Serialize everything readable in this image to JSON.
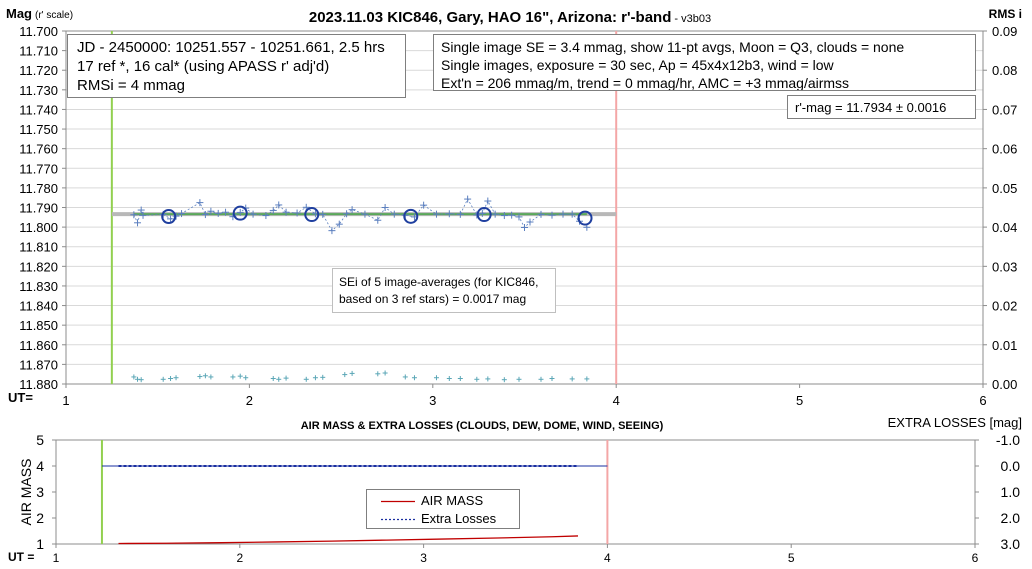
{
  "title": {
    "main": "2023.11.03 KIC846, Gary, HAO 16\", Arizona: r'-band",
    "version": " - v3b03"
  },
  "annotations": {
    "jd_box": [
      "JD - 2450000: 10251.557 - 10251.661, 2.5 hrs",
      "17 ref *, 16 cal* (using APASS r' adj'd)",
      "RMSi = 4 mmag"
    ],
    "se_box": [
      "Single image SE = 3.4 mmag, show  11-pt avgs, Moon = Q3, clouds = none",
      "Single images, exposure = 30 sec, Ap = 45x4x12b3, wind = low",
      "Ext'n = 206 mmag/m, trend = 0  mmag/hr, AMC = +3 mmag/airmss"
    ],
    "rmag_box": "r'-mag = 11.7934 ± 0.0016",
    "sei_box": [
      "SEi of 5 image-averages (for KIC846,",
      "based on 3 ref stars) = 0.0017 mag"
    ]
  },
  "colors": {
    "green_marker": "#92d050",
    "red_marker": "#f4a6a6",
    "points": "#5b7fbf",
    "circles": "#1f3f9f",
    "fit_green": "#5aa85a",
    "fit_gray": "#b8b8b8",
    "rms": "#5aa6b6",
    "airmass": "#c00000",
    "extra": "#1a2fa0",
    "grid": "#d9d9d9"
  },
  "chart_data": [
    {
      "type": "scatter",
      "name": "top",
      "ylabel": "Mag",
      "ylabel_unit": "(r' scale)",
      "y2label": "RMS i",
      "xlabel": "UT=",
      "xlim": [
        1,
        6
      ],
      "ylim": [
        11.7,
        11.88
      ],
      "y_reversed": true,
      "y2lim": [
        0,
        0.09
      ],
      "x_ticks": [
        1,
        2,
        3,
        4,
        5,
        6
      ],
      "y_ticks": [
        11.7,
        11.71,
        11.72,
        11.73,
        11.74,
        11.75,
        11.76,
        11.77,
        11.78,
        11.79,
        11.8,
        11.81,
        11.82,
        11.83,
        11.84,
        11.85,
        11.86,
        11.87,
        11.88
      ],
      "y2_ticks": [
        0,
        0.01,
        0.02,
        0.03,
        0.04,
        0.05,
        0.06,
        0.07,
        0.08,
        0.09
      ],
      "start_ut": 1.25,
      "end_ut": 4.0,
      "fit_mag": 11.7934,
      "fit_range": [
        1.37,
        3.84
      ],
      "avg_points": [
        [
          1.56,
          11.7946
        ],
        [
          1.95,
          11.7929
        ],
        [
          2.34,
          11.7936
        ],
        [
          2.88,
          11.7945
        ],
        [
          3.28,
          11.7936
        ],
        [
          3.83,
          11.7954
        ]
      ],
      "points": [
        [
          1.37,
          11.7937
        ],
        [
          1.39,
          11.7978
        ],
        [
          1.41,
          11.7913
        ],
        [
          1.42,
          11.794
        ],
        [
          1.53,
          11.7935
        ],
        [
          1.57,
          11.7958
        ],
        [
          1.6,
          11.7944
        ],
        [
          1.63,
          11.7931
        ],
        [
          1.73,
          11.7875
        ],
        [
          1.76,
          11.7936
        ],
        [
          1.79,
          11.7919
        ],
        [
          1.83,
          11.793
        ],
        [
          1.87,
          11.7924
        ],
        [
          1.91,
          11.7947
        ],
        [
          1.95,
          11.7925
        ],
        [
          1.98,
          11.7903
        ],
        [
          2.02,
          11.7934
        ],
        [
          2.09,
          11.7941
        ],
        [
          2.13,
          11.7915
        ],
        [
          2.16,
          11.7887
        ],
        [
          2.2,
          11.7924
        ],
        [
          2.26,
          11.7928
        ],
        [
          2.31,
          11.7899
        ],
        [
          2.36,
          11.7932
        ],
        [
          2.4,
          11.7935
        ],
        [
          2.45,
          11.8018
        ],
        [
          2.49,
          11.7985
        ],
        [
          2.53,
          11.7932
        ],
        [
          2.56,
          11.7911
        ],
        [
          2.63,
          11.7934
        ],
        [
          2.7,
          11.7965
        ],
        [
          2.74,
          11.79
        ],
        [
          2.79,
          11.7934
        ],
        [
          2.85,
          11.7939
        ],
        [
          2.9,
          11.7948
        ],
        [
          2.95,
          11.7888
        ],
        [
          3.02,
          11.7934
        ],
        [
          3.09,
          11.7932
        ],
        [
          3.15,
          11.7935
        ],
        [
          3.19,
          11.7857
        ],
        [
          3.24,
          11.7938
        ],
        [
          3.27,
          11.793
        ],
        [
          3.3,
          11.7867
        ],
        [
          3.34,
          11.7934
        ],
        [
          3.39,
          11.7941
        ],
        [
          3.43,
          11.7939
        ],
        [
          3.47,
          11.7948
        ],
        [
          3.5,
          11.8002
        ],
        [
          3.53,
          11.7974
        ],
        [
          3.59,
          11.7935
        ],
        [
          3.65,
          11.7939
        ],
        [
          3.71,
          11.7934
        ],
        [
          3.76,
          11.7934
        ],
        [
          3.8,
          11.797
        ],
        [
          3.84,
          11.8001
        ]
      ],
      "rms_points": [
        [
          1.37,
          0.0018
        ],
        [
          1.39,
          0.0012
        ],
        [
          1.41,
          0.0011
        ],
        [
          1.53,
          0.0012
        ],
        [
          1.57,
          0.0014
        ],
        [
          1.6,
          0.0016
        ],
        [
          1.73,
          0.0019
        ],
        [
          1.76,
          0.0021
        ],
        [
          1.79,
          0.0018
        ],
        [
          1.91,
          0.0018
        ],
        [
          1.95,
          0.002
        ],
        [
          1.98,
          0.0016
        ],
        [
          2.13,
          0.0014
        ],
        [
          2.16,
          0.0012
        ],
        [
          2.2,
          0.0015
        ],
        [
          2.31,
          0.0012
        ],
        [
          2.36,
          0.0016
        ],
        [
          2.4,
          0.0017
        ],
        [
          2.52,
          0.0024
        ],
        [
          2.56,
          0.0027
        ],
        [
          2.7,
          0.0026
        ],
        [
          2.74,
          0.0028
        ],
        [
          2.85,
          0.0018
        ],
        [
          2.9,
          0.0016
        ],
        [
          3.02,
          0.0016
        ],
        [
          3.09,
          0.0014
        ],
        [
          3.15,
          0.0014
        ],
        [
          3.24,
          0.0012
        ],
        [
          3.3,
          0.0013
        ],
        [
          3.39,
          0.0011
        ],
        [
          3.47,
          0.0012
        ],
        [
          3.59,
          0.0012
        ],
        [
          3.65,
          0.0014
        ],
        [
          3.76,
          0.0013
        ],
        [
          3.84,
          0.0013
        ]
      ]
    },
    {
      "type": "line",
      "name": "bottom",
      "title": "AIR MASS & EXTRA LOSSES (CLOUDS, DEW, DOME, WIND, SEEING)",
      "ylabel": "AIR MASS",
      "y2label": "EXTRA LOSSES [mag]",
      "xlabel": "UT =",
      "xlim": [
        1,
        6
      ],
      "ylim": [
        1,
        5
      ],
      "y2lim": [
        -1.0,
        3.0
      ],
      "y2_reversed": true,
      "x_ticks": [
        1,
        2,
        3,
        4,
        5,
        6
      ],
      "y_ticks": [
        1,
        2,
        3,
        4,
        5
      ],
      "y2_ticks": [
        -1.0,
        0.0,
        1.0,
        2.0,
        3.0
      ],
      "y2_tick_labels": [
        "-1.0",
        "0.0",
        "1.0",
        "2.0",
        "3.0"
      ],
      "start_ut": 1.25,
      "end_ut": 4.0,
      "legend_position": "bottom-center",
      "series": [
        {
          "name": "AIR MASS",
          "x": [
            1.34,
            1.6,
            1.9,
            2.2,
            2.5,
            2.8,
            3.1,
            3.4,
            3.7,
            3.84
          ],
          "y": [
            1.02,
            1.03,
            1.05,
            1.08,
            1.11,
            1.15,
            1.19,
            1.23,
            1.28,
            1.31
          ]
        },
        {
          "name": "Extra Losses",
          "x": [
            1.34,
            3.84
          ],
          "y": [
            0.0,
            0.0
          ]
        }
      ]
    }
  ]
}
